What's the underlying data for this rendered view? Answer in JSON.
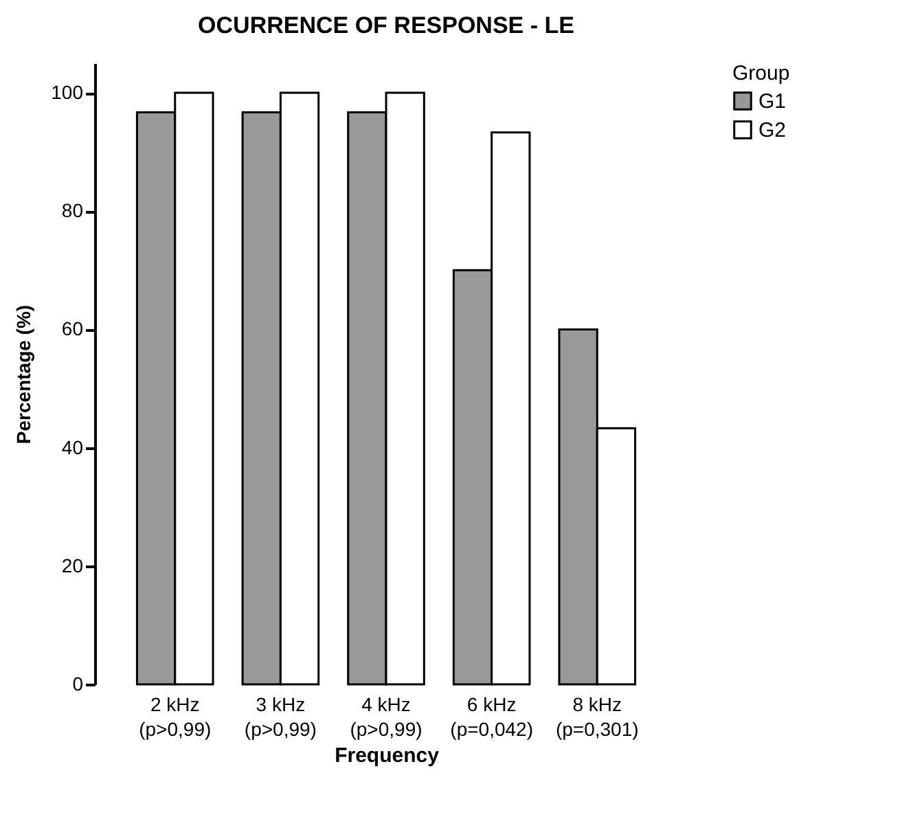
{
  "chart_data": {
    "type": "bar",
    "title": "OCURRENCE OF RESPONSE - LE",
    "xlabel": "Frequency",
    "ylabel": "Percentage (%)",
    "legend_title": "Group",
    "categories": [
      "2 kHz\n(p>0,99)",
      "3 kHz\n(p>0,99)",
      "4 kHz\n(p>0,99)",
      "6 kHz\n(p=0,042)",
      "8 kHz\n(p=0,301)"
    ],
    "series": [
      {
        "name": "G1",
        "color": "#999999",
        "values": [
          96.7,
          96.7,
          96.7,
          70,
          60
        ]
      },
      {
        "name": "G2",
        "color": "#ffffff",
        "values": [
          100,
          100,
          100,
          93.3,
          43.3
        ]
      }
    ],
    "ylim": [
      0,
      105
    ],
    "yticks": [
      0,
      20,
      40,
      60,
      80,
      100
    ],
    "grid": false,
    "legend": "top right"
  }
}
